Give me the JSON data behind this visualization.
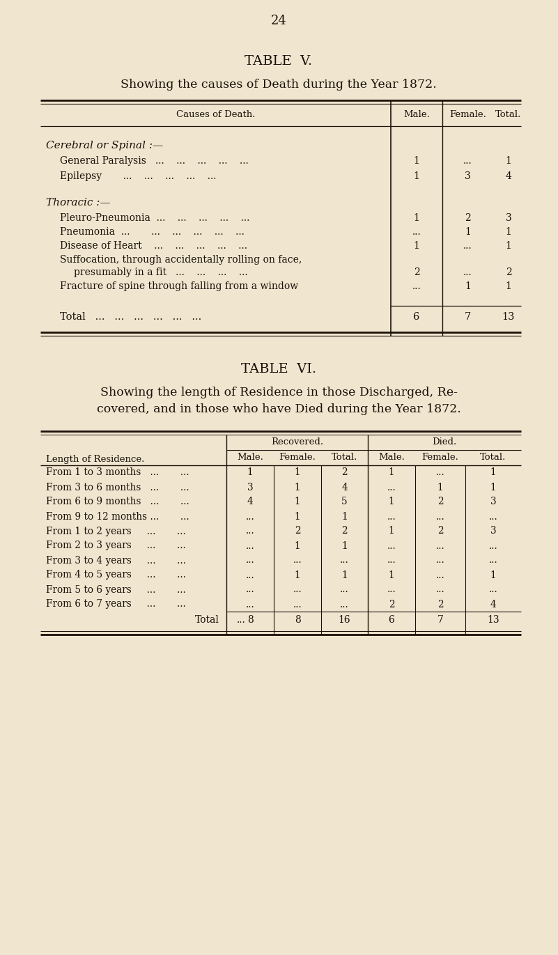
{
  "bg_color": "#f0e6d0",
  "page_number": "24",
  "table5": {
    "title": "TABLE  V.",
    "subtitle": "Showing the causes of Death during the Year 1872.",
    "sections": [
      {
        "section_header": "Cerebral or Spinal :—",
        "rows": [
          {
            "label": "General Paralysis  ...   ...   ...   ...   ...",
            "male": "1",
            "female": "...",
            "total": "1"
          },
          {
            "label": "Epilepsy       ...   ...   ...   ...   ...",
            "male": "1",
            "female": "3",
            "total": "4"
          }
        ]
      },
      {
        "section_header": "Thoracic :—",
        "rows": [
          {
            "label": "Pleuro-Pneumonia  ...   ...   ...   ...   ...",
            "male": "1",
            "female": "2",
            "total": "3"
          },
          {
            "label": "Pneumonia  ...       ...   ...   ...   ...   ...",
            "male": "...",
            "female": "1",
            "total": "1"
          },
          {
            "label": "Disease of Heart   ...   ...   ...   ...   ...",
            "male": "1",
            "female": "...",
            "total": "1"
          },
          {
            "label_line1": "Suffocation, through accidentally rolling on face,",
            "label_line2": "    presumably in a fit  ...   ...   ...   ...",
            "male": "2",
            "female": "...",
            "total": "2"
          },
          {
            "label": "Fracture of spine through falling from a window",
            "male": "...",
            "female": "1",
            "total": "1"
          }
        ]
      }
    ],
    "total_row": {
      "label": "Total   ...   ...   ...   ...   ...   ...",
      "male": "6",
      "female": "7",
      "total": "13"
    }
  },
  "table6": {
    "title": "TABLE  VI.",
    "subtitle_line1": "Showing the length of Residence in those Discharged, Re-",
    "subtitle_line2": "covered, and in those who have Died during the Year 1872.",
    "rows": [
      {
        "label": "From 1 to 3 months   ...       ...",
        "rec_m": "1",
        "rec_f": "1",
        "rec_t": "2",
        "die_m": "1",
        "die_f": "...",
        "die_t": "1"
      },
      {
        "label": "From 3 to 6 months   ...       ...",
        "rec_m": "3",
        "rec_f": "1",
        "rec_t": "4",
        "die_m": "...",
        "die_f": "1",
        "die_t": "1"
      },
      {
        "label": "From 6 to 9 months   ...       ...",
        "rec_m": "4",
        "rec_f": "1",
        "rec_t": "5",
        "die_m": "1",
        "die_f": "2",
        "die_t": "3"
      },
      {
        "label": "From 9 to 12 months ...       ...",
        "rec_m": "...",
        "rec_f": "1",
        "rec_t": "1",
        "die_m": "...",
        "die_f": "...",
        "die_t": "..."
      },
      {
        "label": "From 1 to 2 years     ...       ...",
        "rec_m": "...",
        "rec_f": "2",
        "rec_t": "2",
        "die_m": "1",
        "die_f": "2",
        "die_t": "3"
      },
      {
        "label": "From 2 to 3 years     ...       ...",
        "rec_m": "...",
        "rec_f": "1",
        "rec_t": "1",
        "die_m": "...",
        "die_f": "...",
        "die_t": "..."
      },
      {
        "label": "From 3 to 4 years     ...       ...",
        "rec_m": "...",
        "rec_f": "...",
        "rec_t": "...",
        "die_m": "...",
        "die_f": "...",
        "die_t": "..."
      },
      {
        "label": "From 4 to 5 years     ...       ...",
        "rec_m": "...",
        "rec_f": "1",
        "rec_t": "1",
        "die_m": "1",
        "die_f": "...",
        "die_t": "1"
      },
      {
        "label": "From 5 to 6 years     ...       ...",
        "rec_m": "...",
        "rec_f": "...",
        "rec_t": "...",
        "die_m": "...",
        "die_f": "...",
        "die_t": "..."
      },
      {
        "label": "From 6 to 7 years     ...       ...",
        "rec_m": "...",
        "rec_f": "...",
        "rec_t": "...",
        "die_m": "2",
        "die_f": "2",
        "die_t": "4"
      }
    ],
    "total_row": {
      "rec_m": "8",
      "rec_f": "8",
      "rec_t": "16",
      "die_m": "6",
      "die_f": "7",
      "die_t": "13"
    }
  }
}
